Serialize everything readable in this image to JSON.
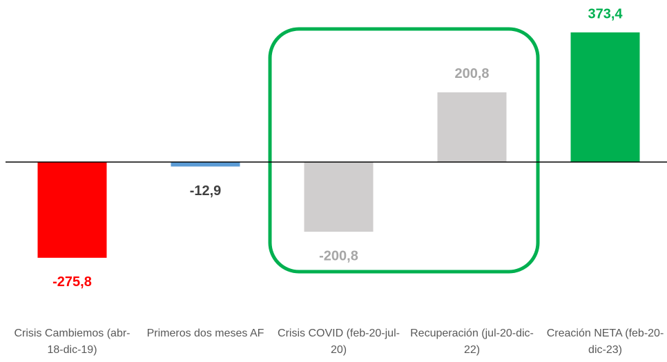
{
  "chart_data": {
    "type": "bar",
    "categories": [
      "Crisis Cambiemos (abr-18-dic-19)",
      "Primeros dos meses AF",
      "Crisis COVID (feb-20-jul-20)",
      "Recuperación (jul-20-dic-22)",
      "Creación NETA (feb-20-dic-23)"
    ],
    "values": [
      -275.8,
      -12.9,
      -200.8,
      200.8,
      373.4
    ],
    "value_labels": [
      "-275,8",
      "-12,9",
      "-200,8",
      "200,8",
      "373,4"
    ],
    "colors": [
      "#ff0000",
      "#5b9bd5",
      "#d0cece",
      "#d0cece",
      "#00b050"
    ],
    "label_colors": [
      "#ff0000",
      "#404040",
      "#a6a6a6",
      "#a6a6a6",
      "#00b050"
    ]
  }
}
